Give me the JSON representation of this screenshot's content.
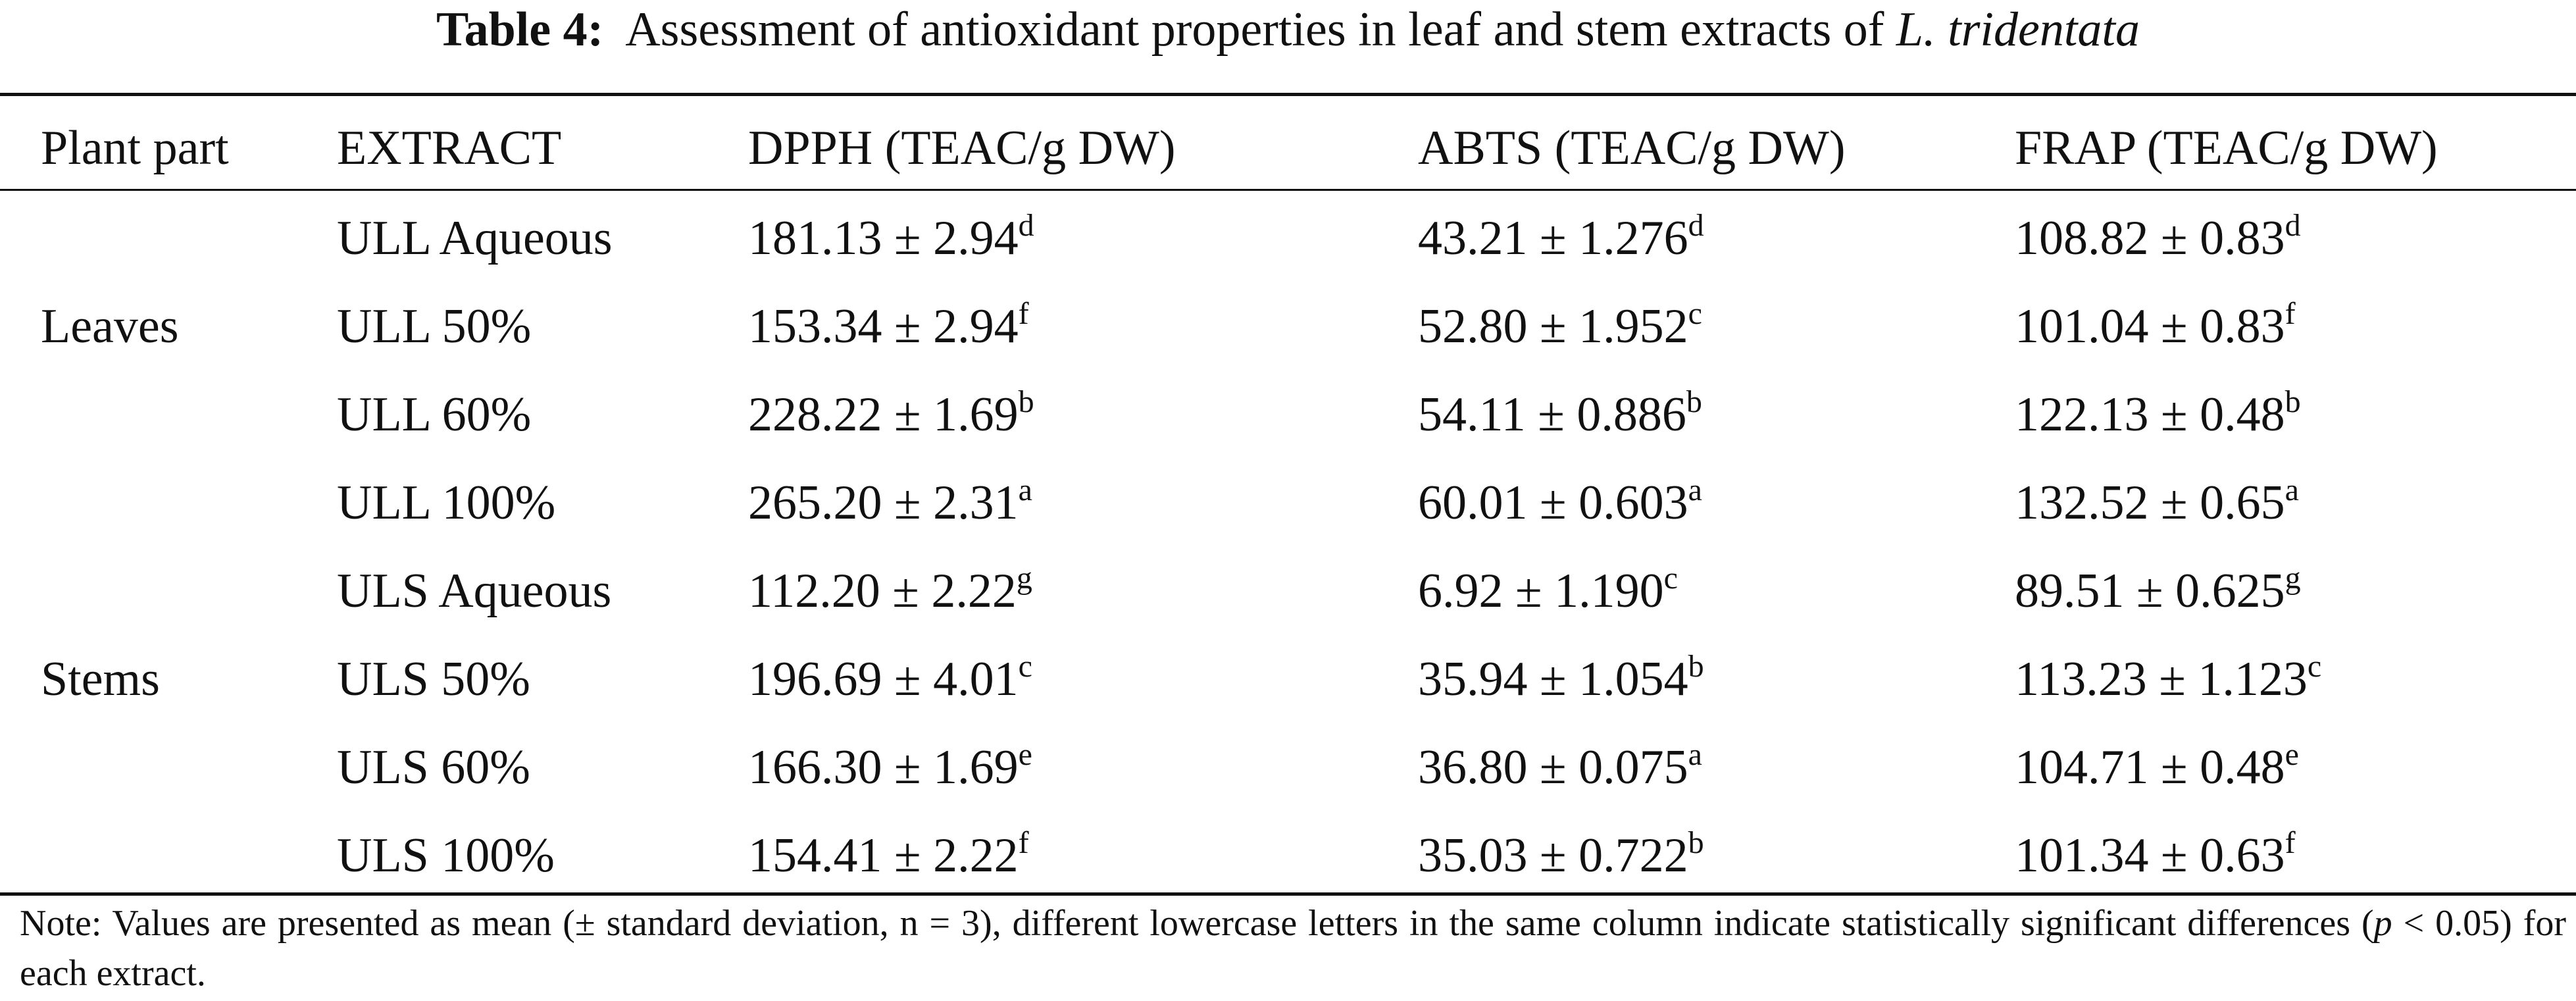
{
  "table": {
    "title": {
      "label": "Table 4:",
      "text": "Assessment of antioxidant properties in leaf and stem extracts of",
      "species": "L. tridentata"
    },
    "header": [
      "Plant part",
      "EXTRACT",
      "DPPH (TEAC/g DW)",
      "ABTS (TEAC/g DW)",
      "FRAP (TEAC/g DW)"
    ],
    "groups": [
      {
        "label": "Leaves",
        "rows": [
          {
            "extract": "ULL Aqueous",
            "cells": [
              {
                "value": "181.13 ± 2.94",
                "sup": "d"
              },
              {
                "value": "43.21 ± 1.276",
                "sup": "d"
              },
              {
                "value": "108.82 ± 0.83",
                "sup": "d"
              }
            ]
          },
          {
            "extract": "ULL 50%",
            "cells": [
              {
                "value": "153.34 ± 2.94",
                "sup": "f"
              },
              {
                "value": "52.80 ± 1.952",
                "sup": "c"
              },
              {
                "value": "101.04 ± 0.83",
                "sup": "f"
              }
            ]
          },
          {
            "extract": "ULL 60%",
            "cells": [
              {
                "value": "228.22 ± 1.69",
                "sup": "b"
              },
              {
                "value": "54.11 ± 0.886",
                "sup": "b"
              },
              {
                "value": "122.13 ± 0.48",
                "sup": "b"
              }
            ]
          },
          {
            "extract": "ULL 100%",
            "cells": [
              {
                "value": "265.20 ± 2.31",
                "sup": "a"
              },
              {
                "value": "60.01 ± 0.603",
                "sup": "a"
              },
              {
                "value": "132.52 ± 0.65",
                "sup": "a"
              }
            ]
          }
        ]
      },
      {
        "label": "Stems",
        "rows": [
          {
            "extract": "ULS Aqueous",
            "cells": [
              {
                "value": "112.20 ± 2.22",
                "sup": "g"
              },
              {
                "value": "6.92 ± 1.190",
                "sup": "c"
              },
              {
                "value": "89.51 ± 0.625",
                "sup": "g"
              }
            ]
          },
          {
            "extract": "ULS 50%",
            "cells": [
              {
                "value": "196.69 ± 4.01",
                "sup": "c"
              },
              {
                "value": "35.94 ± 1.054",
                "sup": "b"
              },
              {
                "value": "113.23 ± 1.123",
                "sup": "c"
              }
            ]
          },
          {
            "extract": "ULS 60%",
            "cells": [
              {
                "value": "166.30 ± 1.69",
                "sup": "e"
              },
              {
                "value": "36.80 ± 0.075",
                "sup": "a"
              },
              {
                "value": "104.71 ± 0.48",
                "sup": "e"
              }
            ]
          },
          {
            "extract": "ULS 100%",
            "cells": [
              {
                "value": "154.41 ± 2.22",
                "sup": "f"
              },
              {
                "value": "35.03 ± 0.722",
                "sup": "b"
              },
              {
                "value": "101.34 ± 0.63",
                "sup": "f"
              }
            ]
          }
        ]
      }
    ],
    "note": {
      "before": "Note: Values are presented as mean (± standard deviation, n = 3), different lowercase letters in the same column indicate statistically significant differences (",
      "italic": "p",
      "after": " < 0.05) for each extract."
    }
  }
}
